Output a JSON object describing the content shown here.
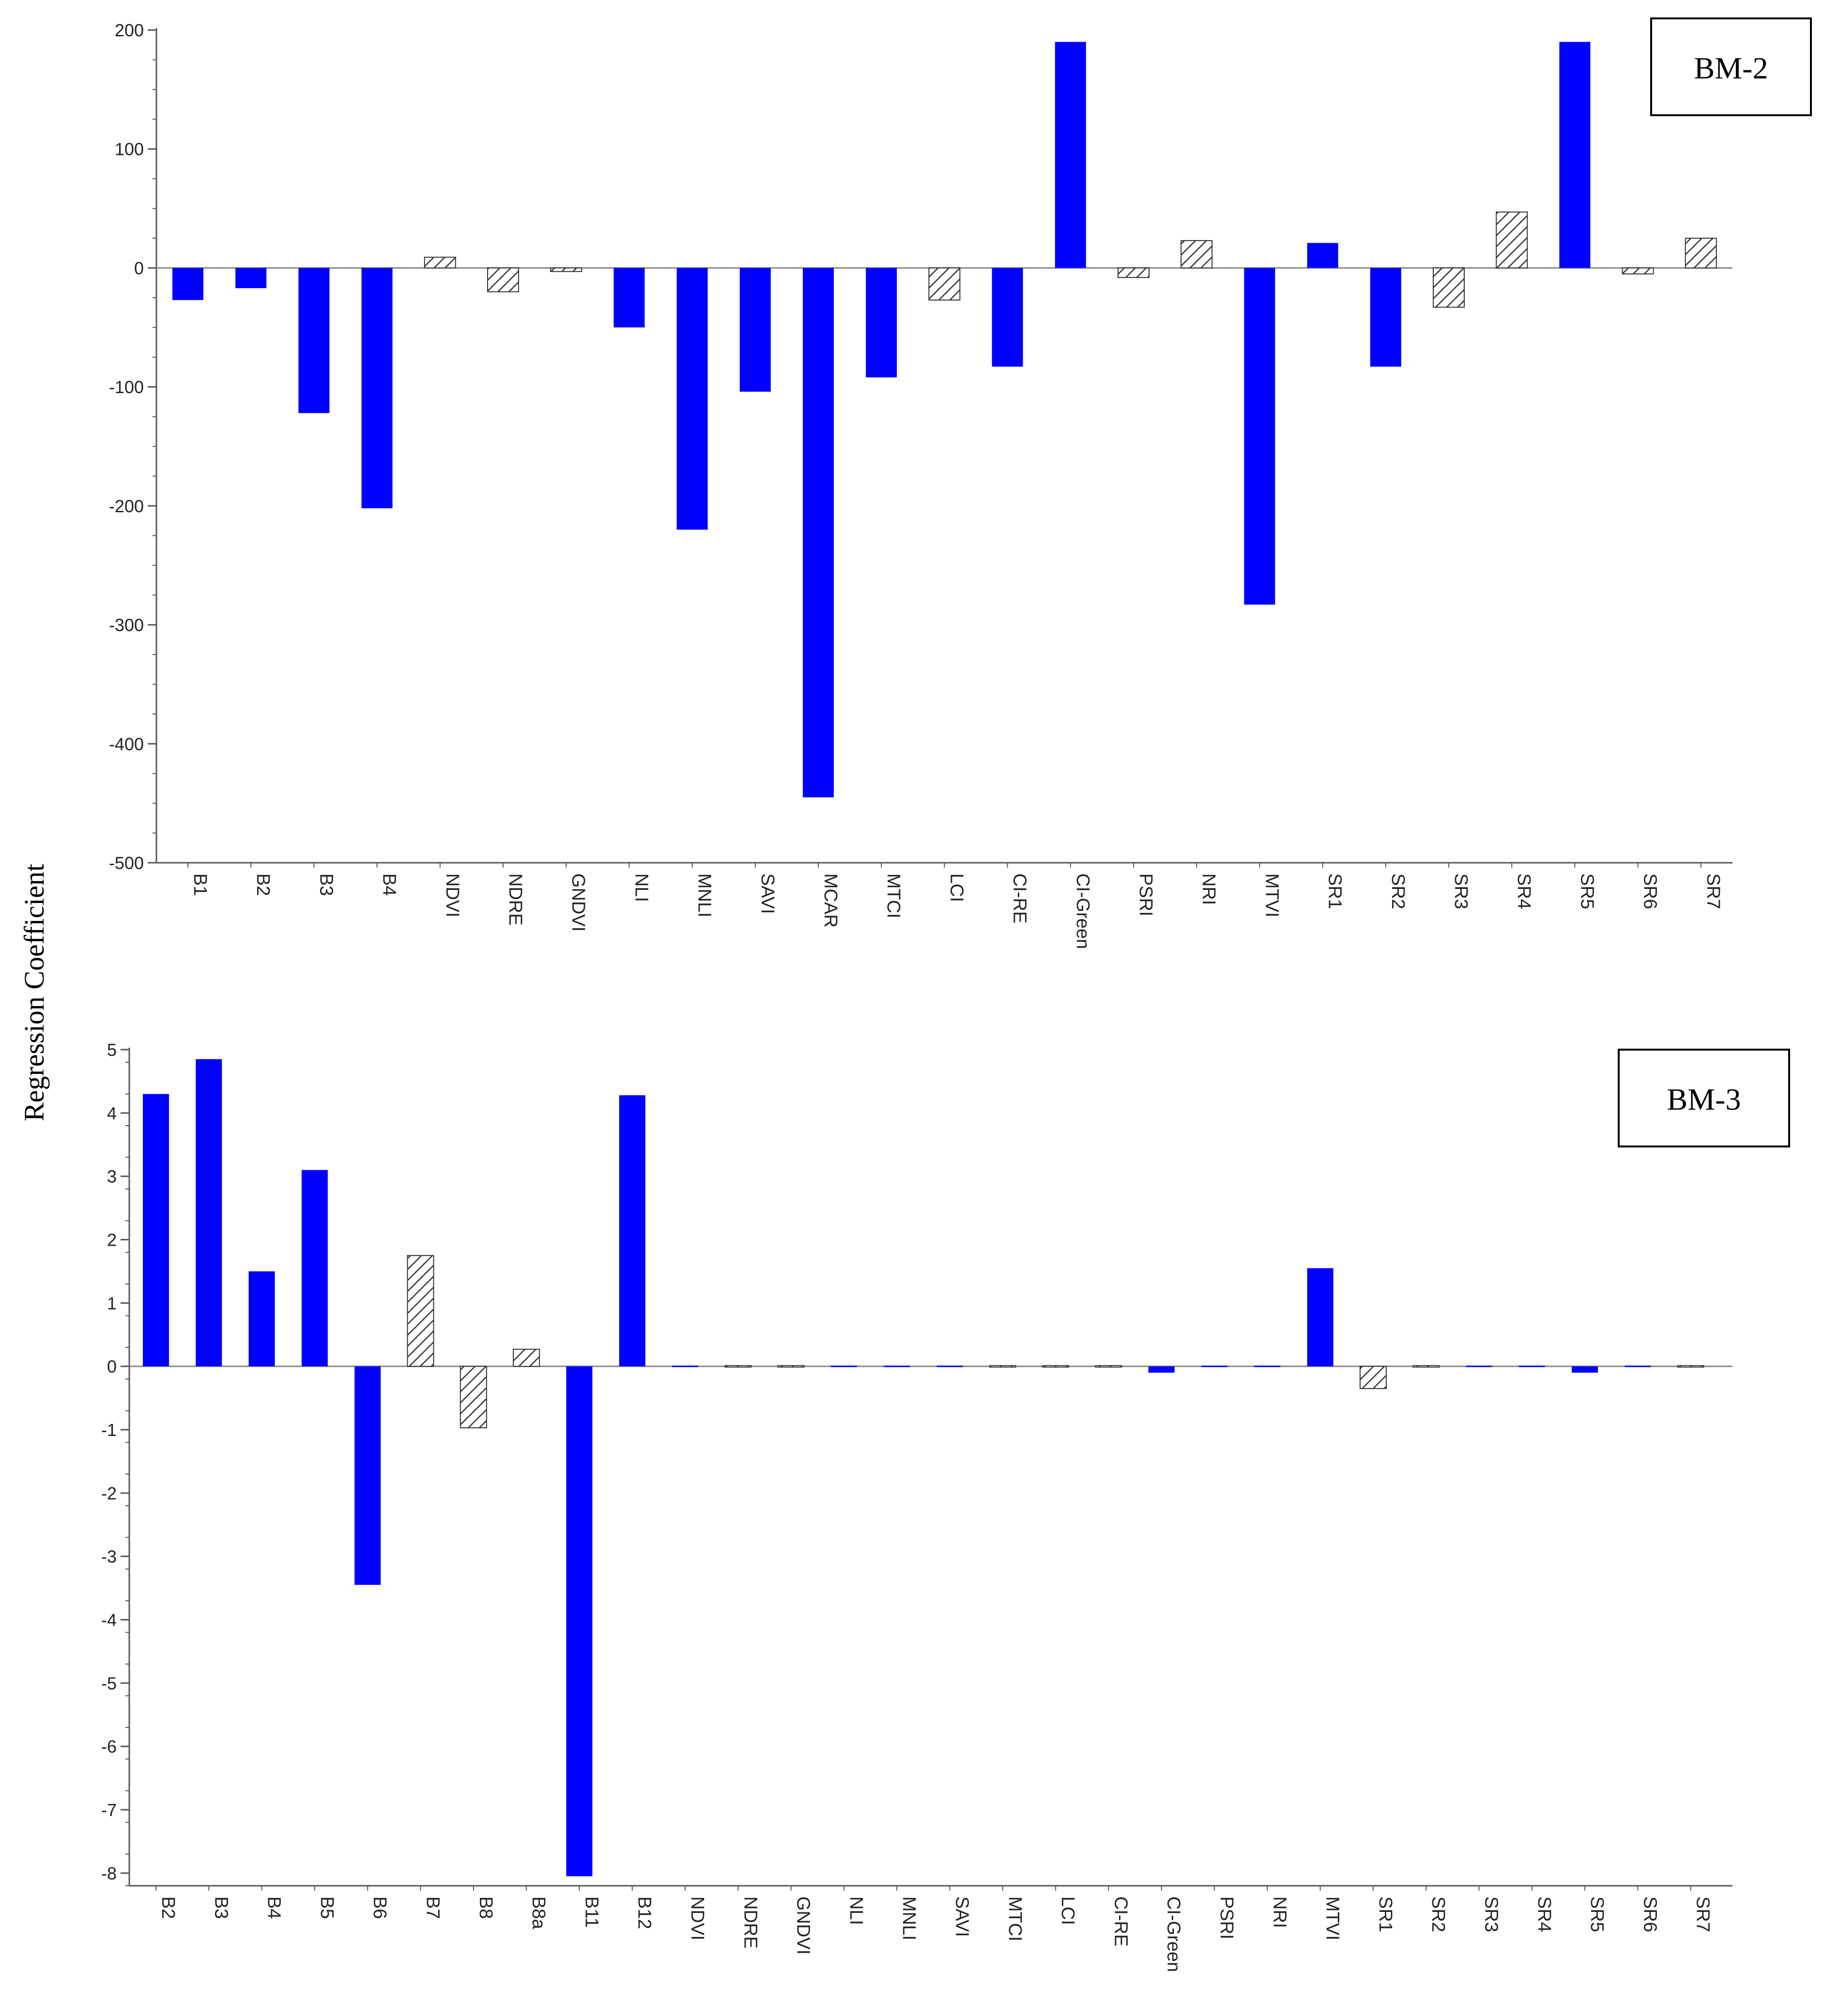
{
  "ylabel": "Regression Coefficient",
  "colors": {
    "significant": "#0000FF",
    "non_significant_stroke": "#333333",
    "axis": "#555555"
  },
  "chart_data": [
    {
      "type": "bar",
      "panel_label": "BM-2",
      "ylabel": "Regression Coefficient",
      "ylim": [
        -500,
        200
      ],
      "yticks": [
        200,
        100,
        0,
        -100,
        -200,
        -300,
        -400,
        -500
      ],
      "grid": false,
      "categories": [
        "B1",
        "B2",
        "B3",
        "B4",
        "NDVI",
        "NDRE",
        "GNDVI",
        "NLI",
        "MNLI",
        "SAVI",
        "MCAR",
        "MTCI",
        "LCI",
        "CI-RE",
        "CI-Green",
        "PSRI",
        "NRI",
        "MTVI",
        "SR1",
        "SR2",
        "SR3",
        "SR4",
        "SR5",
        "SR6",
        "SR7"
      ],
      "values": [
        -27,
        -17,
        -122,
        -202,
        9,
        -20,
        -3,
        -50,
        -220,
        -104,
        -445,
        -92,
        -27,
        -83,
        190,
        -8,
        23,
        -283,
        21,
        -83,
        -33,
        47,
        190,
        -5,
        25
      ],
      "significant": [
        true,
        true,
        true,
        true,
        false,
        false,
        false,
        true,
        true,
        true,
        true,
        true,
        false,
        true,
        true,
        false,
        false,
        true,
        true,
        true,
        false,
        false,
        true,
        false,
        false
      ]
    },
    {
      "type": "bar",
      "panel_label": "BM-3",
      "ylabel": "Regression Coefficient",
      "ylim": [
        -8.2,
        5
      ],
      "yticks": [
        5,
        4,
        3,
        2,
        1,
        0,
        -1,
        -2,
        -3,
        -4,
        -5,
        -6,
        -7,
        -8
      ],
      "grid": false,
      "categories": [
        "B2",
        "B3",
        "B4",
        "B5",
        "B6",
        "B7",
        "B8",
        "B8a",
        "B11",
        "B12",
        "NDVI",
        "NDRE",
        "GNDVI",
        "NLI",
        "MNLI",
        "SAVI",
        "MTCI",
        "LCI",
        "CI-RE",
        "CI-Green",
        "PSRI",
        "NRI",
        "MTVI",
        "SR1",
        "SR2",
        "SR3",
        "SR4",
        "SR5",
        "SR6",
        "SR7"
      ],
      "values": [
        4.3,
        4.85,
        1.5,
        3.1,
        -3.45,
        1.75,
        -0.97,
        0.27,
        -8.05,
        4.28,
        -0.02,
        0,
        0,
        -0.02,
        -0.02,
        -0.02,
        0,
        0,
        0,
        -0.1,
        -0.02,
        -0.02,
        1.55,
        -0.35,
        0,
        -0.02,
        -0.02,
        -0.1,
        -0.02,
        0
      ],
      "significant": [
        true,
        true,
        true,
        true,
        true,
        false,
        false,
        false,
        true,
        true,
        true,
        false,
        false,
        true,
        true,
        true,
        false,
        false,
        false,
        true,
        true,
        true,
        true,
        false,
        false,
        true,
        true,
        true,
        true,
        false
      ]
    }
  ]
}
